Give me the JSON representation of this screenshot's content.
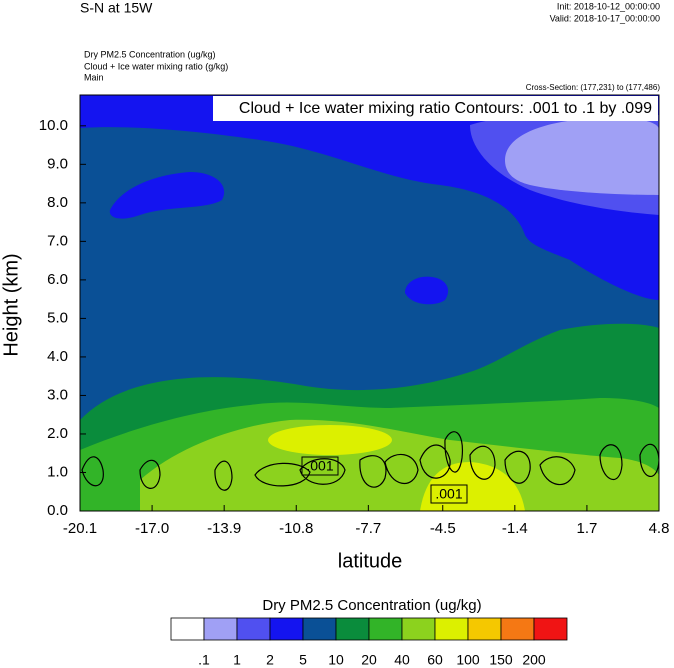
{
  "chart_data": {
    "type": "contour",
    "title": "S-N at 15W",
    "init": "Init: 2018-10-12_00:00:00",
    "valid": "Valid: 2018-10-17_00:00:00",
    "fields": [
      "Dry PM2.5 Concentration   (ug/kg)",
      "Cloud + Ice water mixing ratio   (g/kg)",
      "Main"
    ],
    "cross_section": "Cross-Section: (177,231) to (177,486)",
    "annotation": "Cloud + Ice water mixing ratio Contours: .001 to .1 by .099",
    "contour_labels": [
      ".001",
      ".001"
    ],
    "xlabel": "latitude",
    "ylabel": "Height (km)",
    "xlim": [
      -20.1,
      4.8
    ],
    "xticks": [
      -20.1,
      {
        "value": -17,
        "label": "-17.0"
      },
      -13.9,
      -10.8,
      -7.7,
      -4.5,
      -1.4,
      1.7,
      4.8
    ],
    "ylim": [
      0,
      10.8
    ],
    "yticks": [
      {
        "value": 0,
        "label": "0.0"
      },
      {
        "value": 1,
        "label": "1.0"
      },
      {
        "value": 2,
        "label": "2.0"
      },
      {
        "value": 3,
        "label": "3.0"
      },
      {
        "value": 4,
        "label": "4.0"
      },
      {
        "value": 5,
        "label": "5.0"
      },
      {
        "value": 6,
        "label": "6.0"
      },
      {
        "value": 7,
        "label": "7.0"
      },
      {
        "value": 8,
        "label": "8.0"
      },
      {
        "value": 9,
        "label": "9.0"
      },
      {
        "value": 10,
        "label": "10.0"
      }
    ],
    "colorbar": {
      "title": "Dry PM2.5 Concentration  (ug/kg)",
      "levels": [
        {
          "value": 0.1,
          "label": ".1"
        },
        1,
        2,
        5,
        10,
        20,
        40,
        60,
        100,
        150,
        200
      ],
      "colors": [
        "#ffffff",
        "#a0a0f5",
        "#5050f0",
        "#1414f0",
        "#0a5096",
        "#0a8c3c",
        "#32b428",
        "#8cd21e",
        "#dcf000",
        "#f5c800",
        "#f57814",
        "#f01414"
      ]
    }
  }
}
